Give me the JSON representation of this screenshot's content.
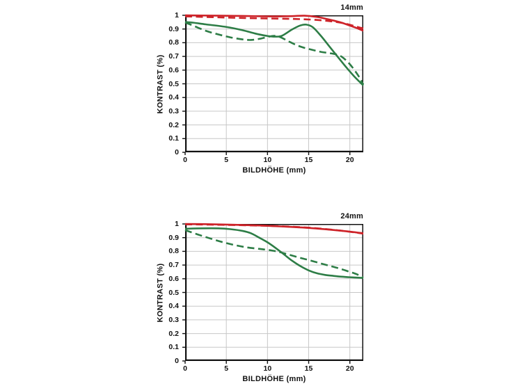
{
  "page": {
    "background": "#ffffff"
  },
  "colors": {
    "red": "#cd2228",
    "green": "#2d7d46",
    "grid": "#c7c7c7",
    "axis": "#111111",
    "text": "#111111"
  },
  "chart_data": [
    {
      "type": "line",
      "title": "14mm",
      "xlabel": "BILDHÖHE (mm)",
      "ylabel": "KONTRAST (%)",
      "xlim": [
        0,
        21.63
      ],
      "ylim": [
        0,
        1
      ],
      "grid": true,
      "legend": "none",
      "xticks": [
        {
          "v": 0,
          "label": "0"
        },
        {
          "v": 5,
          "label": "5"
        },
        {
          "v": 10,
          "label": "10"
        },
        {
          "v": 15,
          "label": "15"
        },
        {
          "v": 20,
          "label": "20"
        }
      ],
      "yticks": [
        {
          "v": 0,
          "label": "0"
        },
        {
          "v": 0.1,
          "label": "0.1"
        },
        {
          "v": 0.2,
          "label": "0.2"
        },
        {
          "v": 0.3,
          "label": "0.3"
        },
        {
          "v": 0.4,
          "label": "0.4"
        },
        {
          "v": 0.5,
          "label": "0.5"
        },
        {
          "v": 0.6,
          "label": "0.6"
        },
        {
          "v": 0.7,
          "label": "0.7"
        },
        {
          "v": 0.8,
          "label": "0.8"
        },
        {
          "v": 0.9,
          "label": "0.9"
        },
        {
          "v": 1,
          "label": "1"
        }
      ],
      "series": [
        {
          "name": "red-solid",
          "color": "red",
          "dash": "solid",
          "points": [
            [
              0,
              1.0
            ],
            [
              3,
              0.998
            ],
            [
              6,
              0.996
            ],
            [
              9,
              0.993
            ],
            [
              11,
              0.992
            ],
            [
              13,
              0.994
            ],
            [
              14.5,
              0.997
            ],
            [
              16,
              0.988
            ],
            [
              17,
              0.976
            ],
            [
              18,
              0.962
            ],
            [
              19,
              0.946
            ],
            [
              20,
              0.925
            ],
            [
              21,
              0.903
            ],
            [
              21.63,
              0.887
            ]
          ]
        },
        {
          "name": "red-dashed",
          "color": "red",
          "dash": "dashed",
          "points": [
            [
              0,
              0.992
            ],
            [
              3,
              0.987
            ],
            [
              6,
              0.982
            ],
            [
              9,
              0.978
            ],
            [
              12,
              0.975
            ],
            [
              14,
              0.972
            ],
            [
              15.5,
              0.968
            ],
            [
              17,
              0.961
            ],
            [
              18,
              0.954
            ],
            [
              19,
              0.945
            ],
            [
              20,
              0.931
            ],
            [
              21,
              0.914
            ],
            [
              21.63,
              0.904
            ]
          ]
        },
        {
          "name": "green-solid",
          "color": "green",
          "dash": "solid",
          "points": [
            [
              0,
              0.951
            ],
            [
              1,
              0.946
            ],
            [
              2.5,
              0.934
            ],
            [
              5,
              0.915
            ],
            [
              7,
              0.891
            ],
            [
              8.5,
              0.867
            ],
            [
              10,
              0.849
            ],
            [
              11,
              0.844
            ],
            [
              11.8,
              0.852
            ],
            [
              13,
              0.897
            ],
            [
              14,
              0.926
            ],
            [
              14.7,
              0.932
            ],
            [
              15.5,
              0.913
            ],
            [
              16.5,
              0.849
            ],
            [
              17.5,
              0.774
            ],
            [
              18.5,
              0.699
            ],
            [
              19.5,
              0.625
            ],
            [
              20.5,
              0.556
            ],
            [
              21.63,
              0.488
            ]
          ]
        },
        {
          "name": "green-dashed",
          "color": "green",
          "dash": "dashed",
          "points": [
            [
              0,
              0.948
            ],
            [
              1,
              0.924
            ],
            [
              2.5,
              0.887
            ],
            [
              4,
              0.861
            ],
            [
              5.5,
              0.839
            ],
            [
              7,
              0.824
            ],
            [
              8,
              0.82
            ],
            [
              9,
              0.828
            ],
            [
              10,
              0.842
            ],
            [
              10.8,
              0.85
            ],
            [
              11.5,
              0.842
            ],
            [
              12.5,
              0.812
            ],
            [
              13.5,
              0.783
            ],
            [
              14.5,
              0.762
            ],
            [
              15.5,
              0.747
            ],
            [
              16.5,
              0.733
            ],
            [
              17.5,
              0.724
            ],
            [
              18.3,
              0.715
            ],
            [
              19,
              0.698
            ],
            [
              20,
              0.643
            ],
            [
              21,
              0.562
            ],
            [
              21.63,
              0.495
            ]
          ]
        }
      ]
    },
    {
      "type": "line",
      "title": "24mm",
      "xlabel": "BILDHÖHE (mm)",
      "ylabel": "KONTRAST (%)",
      "xlim": [
        0,
        21.63
      ],
      "ylim": [
        0,
        1
      ],
      "grid": true,
      "legend": "none",
      "xticks": [
        {
          "v": 0,
          "label": "0"
        },
        {
          "v": 5,
          "label": "5"
        },
        {
          "v": 10,
          "label": "10"
        },
        {
          "v": 15,
          "label": "15"
        },
        {
          "v": 20,
          "label": "20"
        }
      ],
      "yticks": [
        {
          "v": 0,
          "label": "0"
        },
        {
          "v": 0.1,
          "label": "0.1"
        },
        {
          "v": 0.2,
          "label": "0.2"
        },
        {
          "v": 0.3,
          "label": "0.3"
        },
        {
          "v": 0.4,
          "label": "0.4"
        },
        {
          "v": 0.5,
          "label": "0.5"
        },
        {
          "v": 0.6,
          "label": "0.6"
        },
        {
          "v": 0.7,
          "label": "0.7"
        },
        {
          "v": 0.8,
          "label": "0.8"
        },
        {
          "v": 0.9,
          "label": "0.9"
        },
        {
          "v": 1,
          "label": "1"
        }
      ],
      "series": [
        {
          "name": "red-solid",
          "color": "red",
          "dash": "solid",
          "points": [
            [
              0,
              1.0
            ],
            [
              3,
              0.998
            ],
            [
              6,
              0.994
            ],
            [
              9,
              0.989
            ],
            [
              12,
              0.981
            ],
            [
              15,
              0.971
            ],
            [
              18,
              0.956
            ],
            [
              20,
              0.944
            ],
            [
              21.63,
              0.932
            ]
          ]
        },
        {
          "name": "red-dashed",
          "color": "red",
          "dash": "dashed",
          "points": [
            [
              0,
              0.997
            ],
            [
              3,
              0.995
            ],
            [
              6,
              0.992
            ],
            [
              9,
              0.988
            ],
            [
              12,
              0.982
            ],
            [
              15,
              0.973
            ],
            [
              18,
              0.957
            ],
            [
              20,
              0.943
            ],
            [
              21.63,
              0.929
            ]
          ]
        },
        {
          "name": "green-solid",
          "color": "green",
          "dash": "solid",
          "points": [
            [
              0,
              0.965
            ],
            [
              2,
              0.968
            ],
            [
              4,
              0.968
            ],
            [
              5.5,
              0.962
            ],
            [
              7,
              0.949
            ],
            [
              8,
              0.932
            ],
            [
              9,
              0.9
            ],
            [
              10,
              0.866
            ],
            [
              11,
              0.824
            ],
            [
              12,
              0.778
            ],
            [
              13,
              0.731
            ],
            [
              14,
              0.692
            ],
            [
              15,
              0.661
            ],
            [
              16,
              0.64
            ],
            [
              17,
              0.628
            ],
            [
              18,
              0.621
            ],
            [
              19,
              0.615
            ],
            [
              20,
              0.611
            ],
            [
              21.63,
              0.606
            ]
          ]
        },
        {
          "name": "green-dashed",
          "color": "green",
          "dash": "dashed",
          "points": [
            [
              0,
              0.955
            ],
            [
              1.5,
              0.924
            ],
            [
              3,
              0.895
            ],
            [
              4.5,
              0.868
            ],
            [
              6,
              0.846
            ],
            [
              7.5,
              0.829
            ],
            [
              9,
              0.818
            ],
            [
              10,
              0.811
            ],
            [
              11,
              0.801
            ],
            [
              12,
              0.786
            ],
            [
              13,
              0.769
            ],
            [
              14,
              0.752
            ],
            [
              15,
              0.737
            ],
            [
              16,
              0.72
            ],
            [
              17,
              0.703
            ],
            [
              18,
              0.687
            ],
            [
              19,
              0.67
            ],
            [
              20,
              0.65
            ],
            [
              20.8,
              0.634
            ],
            [
              21.63,
              0.608
            ]
          ]
        }
      ]
    }
  ]
}
